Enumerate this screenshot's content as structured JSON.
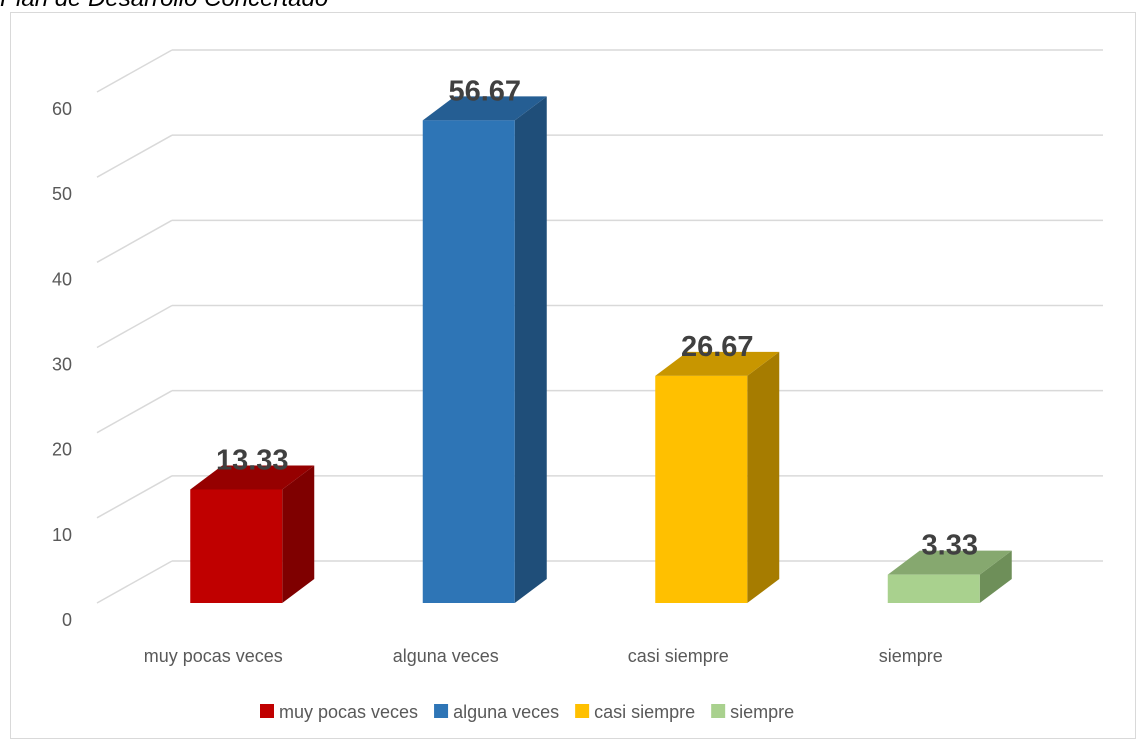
{
  "chart_data": {
    "type": "bar3d",
    "title": "Plan de Desarrollo Concertado",
    "categories": [
      "muy pocas veces",
      "alguna veces",
      "casi siempre",
      "siempre"
    ],
    "values": [
      13.33,
      56.67,
      26.67,
      3.33
    ],
    "colors": [
      "#c00000",
      "#2e75b6",
      "#ffc000",
      "#a9d18e"
    ],
    "side_colors": [
      "#7f0000",
      "#1f4e79",
      "#a67c00",
      "#6e8f59"
    ],
    "top_colors": [
      "#960000",
      "#255e93",
      "#c89600",
      "#86a86f"
    ],
    "ylim": [
      0,
      60
    ],
    "yticks": [
      0,
      10,
      20,
      30,
      40,
      50,
      60
    ],
    "grid": true,
    "legend": "bottom"
  }
}
